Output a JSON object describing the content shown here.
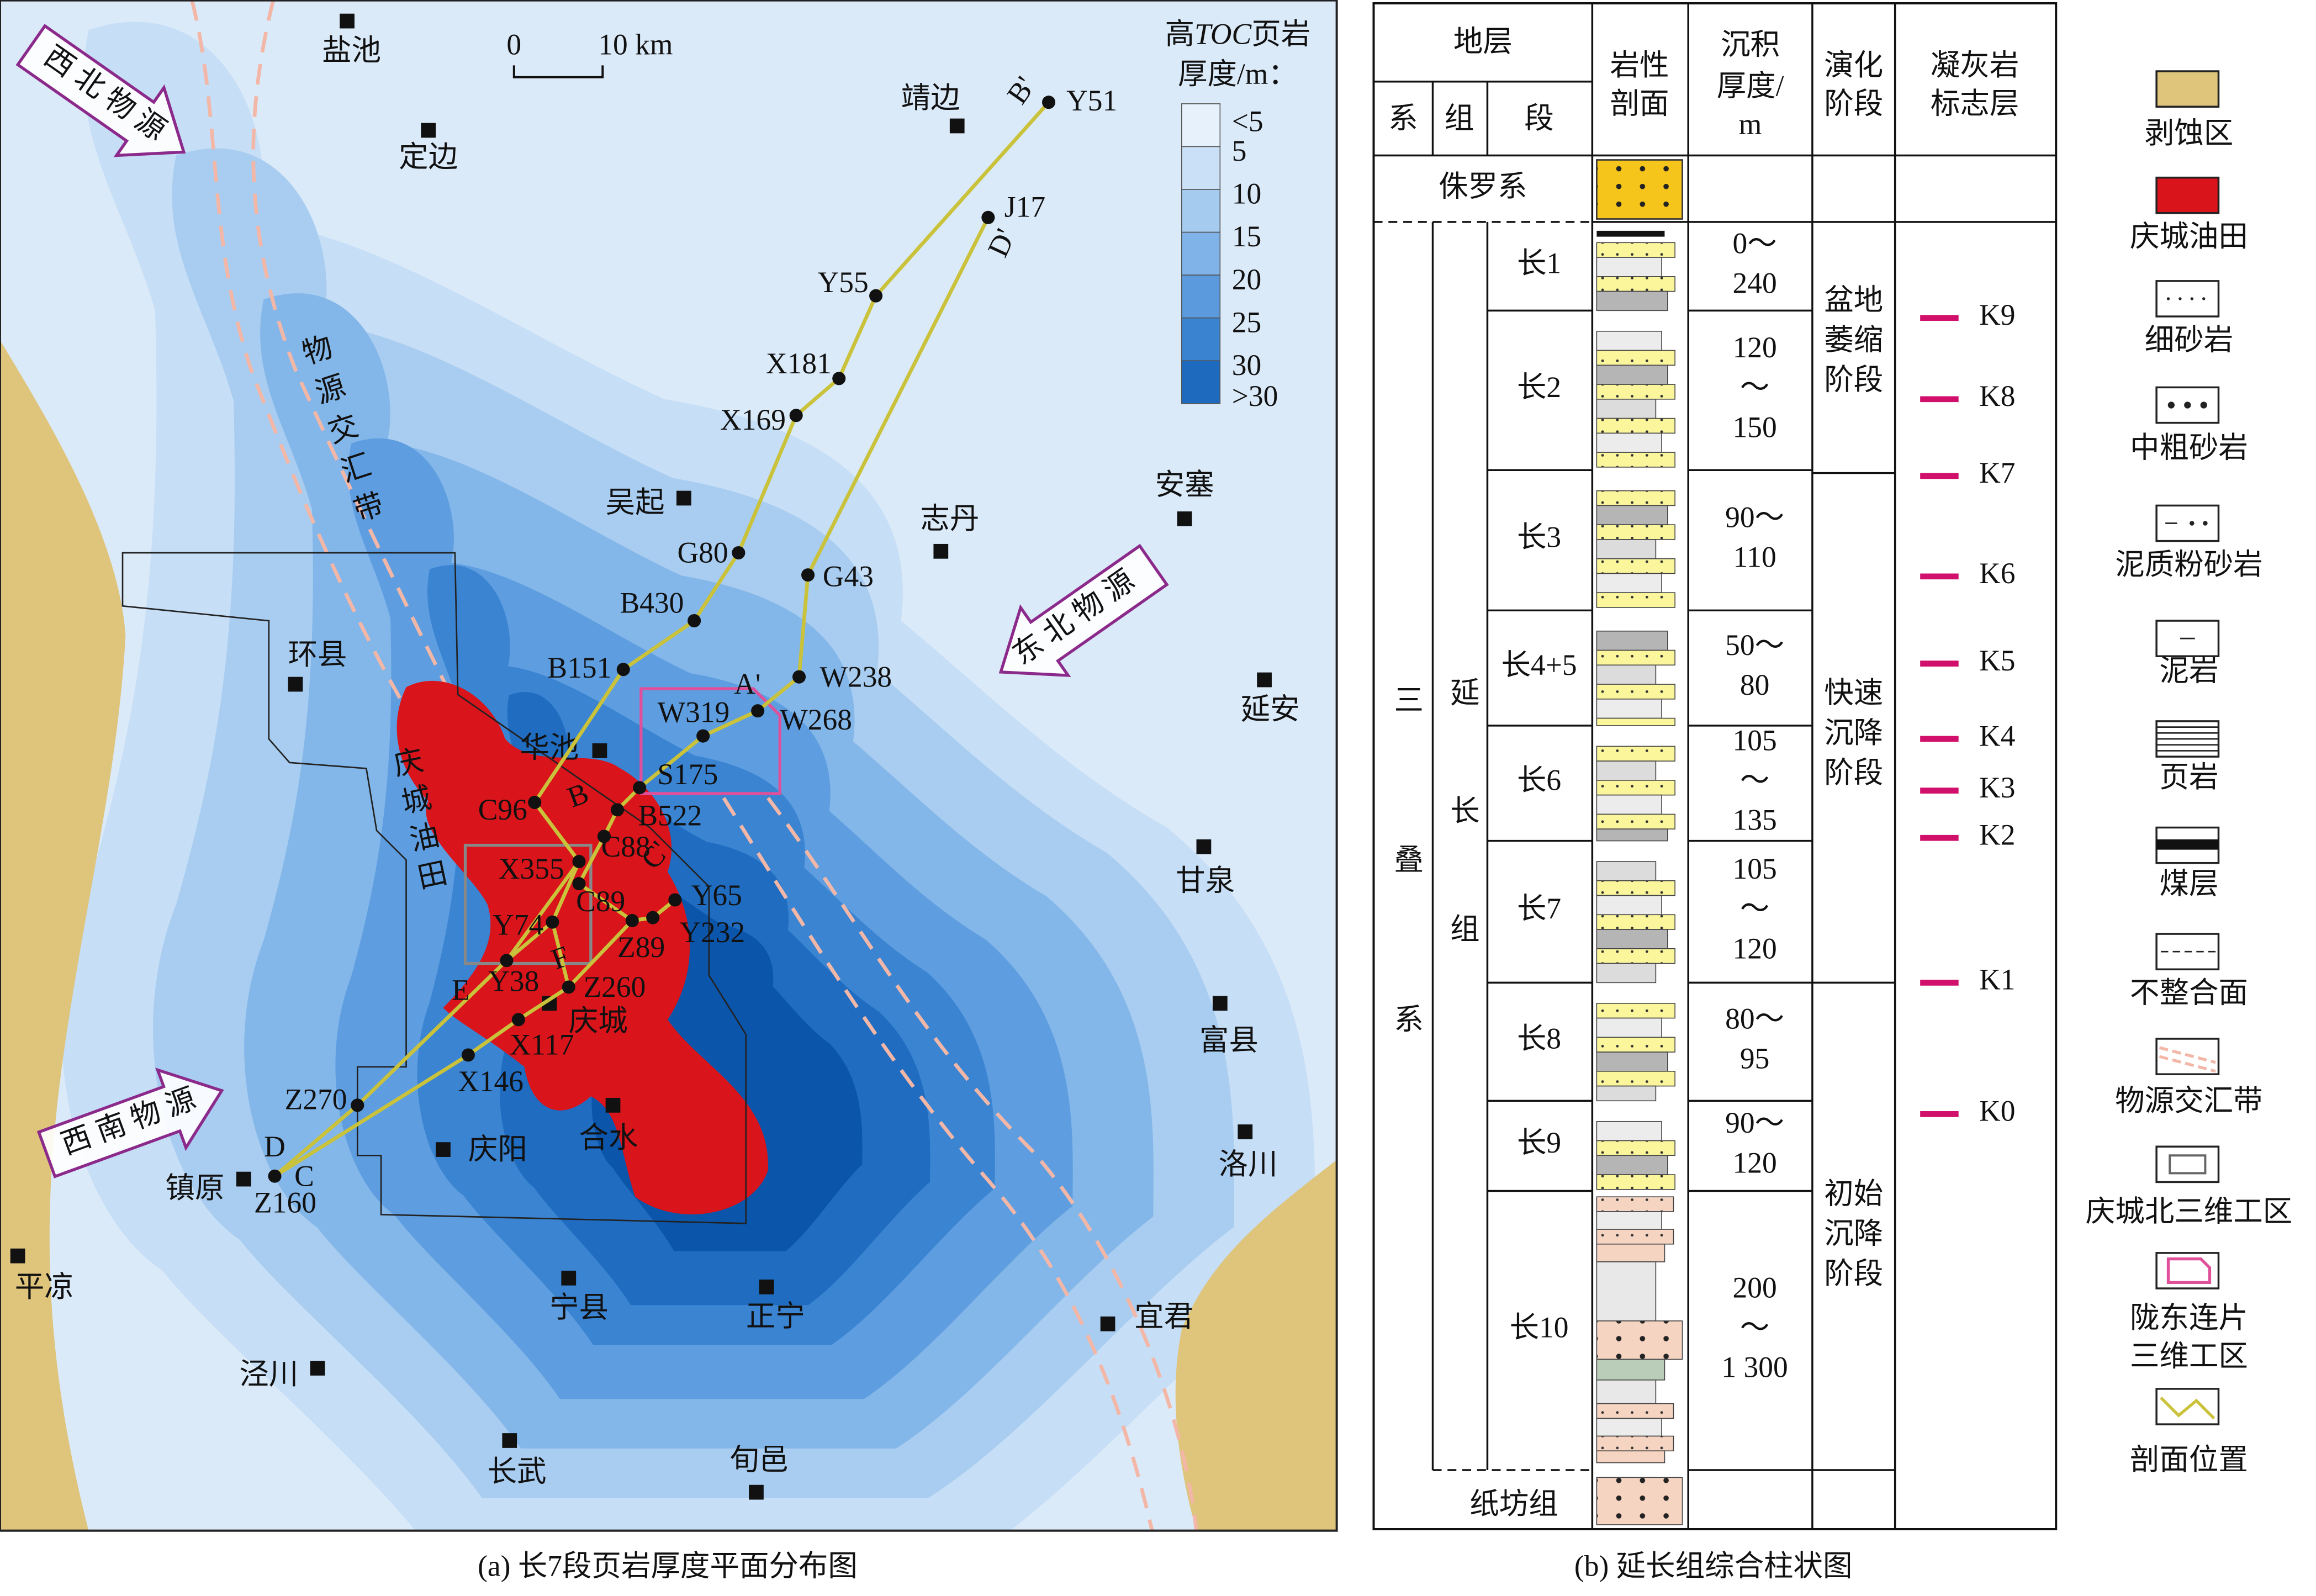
{
  "map": {
    "caption": "(a) 长7段页岩厚度平面分布图",
    "scale_bar": [
      "0",
      "10 km"
    ],
    "legend": {
      "title": [
        "高",
        "TOC",
        "页岩"
      ],
      "subtitle": "厚度/m：",
      "labels": [
        "<5",
        "5",
        "10",
        "15",
        "20",
        "25",
        "30",
        ">30"
      ]
    },
    "sources": [
      "西北物源",
      "东北物源",
      "西南物源"
    ],
    "zone_label": "物源交汇带",
    "oilfield_label": "庆城油田",
    "cities": [
      "盐池",
      "定边",
      "靖边",
      "吴起",
      "志丹",
      "安塞",
      "环县",
      "华池",
      "延安",
      "甘泉",
      "富县",
      "洛川",
      "庆城",
      "合水",
      "庆阳",
      "镇原",
      "平凉",
      "宁县",
      "正宁",
      "宜君",
      "泾川",
      "长武",
      "旬邑"
    ],
    "wells": [
      "Y51",
      "J17",
      "Y55",
      "X181",
      "X169",
      "G80",
      "G43",
      "B430",
      "W238",
      "B151",
      "W268",
      "W319",
      "S175",
      "C96",
      "B522",
      "C88",
      "X355",
      "C89",
      "Y65",
      "Y232",
      "Z89",
      "Y74",
      "Y38",
      "Z260",
      "X117",
      "X146",
      "Z270",
      "Z160"
    ],
    "section_letters": [
      "B'",
      "D'",
      "A'",
      "B",
      "C'",
      "E",
      "F",
      "D",
      "C"
    ]
  },
  "column": {
    "caption": "(b) 延长组综合柱状图",
    "header": {
      "strata": "地层",
      "system": "系",
      "formation": "组",
      "member": "段",
      "lithology": [
        "岩性",
        "剖面"
      ],
      "thickness": [
        "沉积",
        "厚度/",
        "m"
      ],
      "stage": [
        "演化",
        "阶段"
      ],
      "tuff": [
        "凝灰岩",
        "标志层"
      ]
    },
    "jurassic": "侏罗系",
    "triassic": "三叠系",
    "yanchang": "延长组",
    "zhifang": "纸坊组",
    "members": [
      {
        "name": "长1",
        "thickness": [
          "0～",
          "240"
        ]
      },
      {
        "name": "长2",
        "thickness": [
          "120",
          "～",
          "150"
        ]
      },
      {
        "name": "长3",
        "thickness": [
          "90～",
          "110"
        ]
      },
      {
        "name": "长4+5",
        "thickness": [
          "50～",
          "80"
        ]
      },
      {
        "name": "长6",
        "thickness": [
          "105",
          "～",
          "135"
        ]
      },
      {
        "name": "长7",
        "thickness": [
          "105",
          "～",
          "120"
        ]
      },
      {
        "name": "长8",
        "thickness": [
          "80～",
          "95"
        ]
      },
      {
        "name": "长9",
        "thickness": [
          "90～",
          "120"
        ]
      },
      {
        "name": "长10",
        "thickness": [
          "200",
          "～",
          "1 300"
        ]
      }
    ],
    "stages": [
      [
        "盆地",
        "萎缩",
        "阶段"
      ],
      [
        "快速",
        "沉降",
        "阶段"
      ],
      [
        "初始",
        "沉降",
        "阶段"
      ]
    ],
    "tuff_markers": [
      "K9",
      "K8",
      "K7",
      "K6",
      "K5",
      "K4",
      "K3",
      "K2",
      "K1",
      "K0"
    ],
    "legend": [
      "剥蚀区",
      "庆城油田",
      "细砂岩",
      "中粗砂岩",
      "泥质粉砂岩",
      "泥岩",
      "页岩",
      "煤层",
      "不整合面",
      "物源交汇带",
      "庆城北三维工区",
      [
        "陇东连片",
        "三维工区"
      ],
      "剖面位置"
    ]
  }
}
